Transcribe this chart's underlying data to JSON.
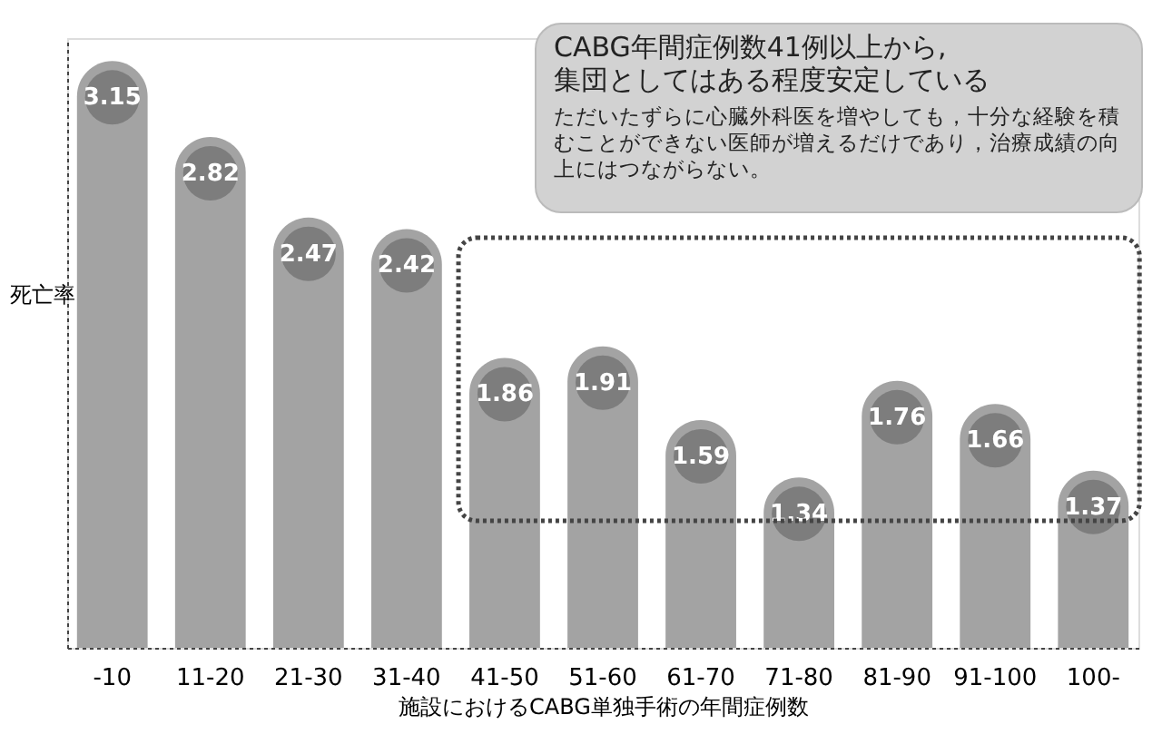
{
  "chart_data": {
    "type": "bar",
    "ylabel": "死亡率",
    "xlabel": "施設におけるCABG単独手術の年間症例数",
    "categories": [
      "-10",
      "11-20",
      "21-30",
      "31-40",
      "41-50",
      "51-60",
      "61-70",
      "71-80",
      "81-90",
      "91-100",
      "100-"
    ],
    "values": [
      3.15,
      2.82,
      2.47,
      2.42,
      1.86,
      1.91,
      1.59,
      1.34,
      1.76,
      1.66,
      1.37
    ],
    "color": "#a3a3a3",
    "data_labels": true,
    "ylim": [
      0.6,
      3.25
    ],
    "tick_labels": "x",
    "grid": false,
    "annotations": [
      "CABG年間症例数41例以上から,\n集団としてはある程度安定している",
      "ただいたずらに心臓外科医を増やしても，十分な経験を積むことができない医師が増えるだけであり，治療成績の向上にはつながらない。"
    ]
  }
}
